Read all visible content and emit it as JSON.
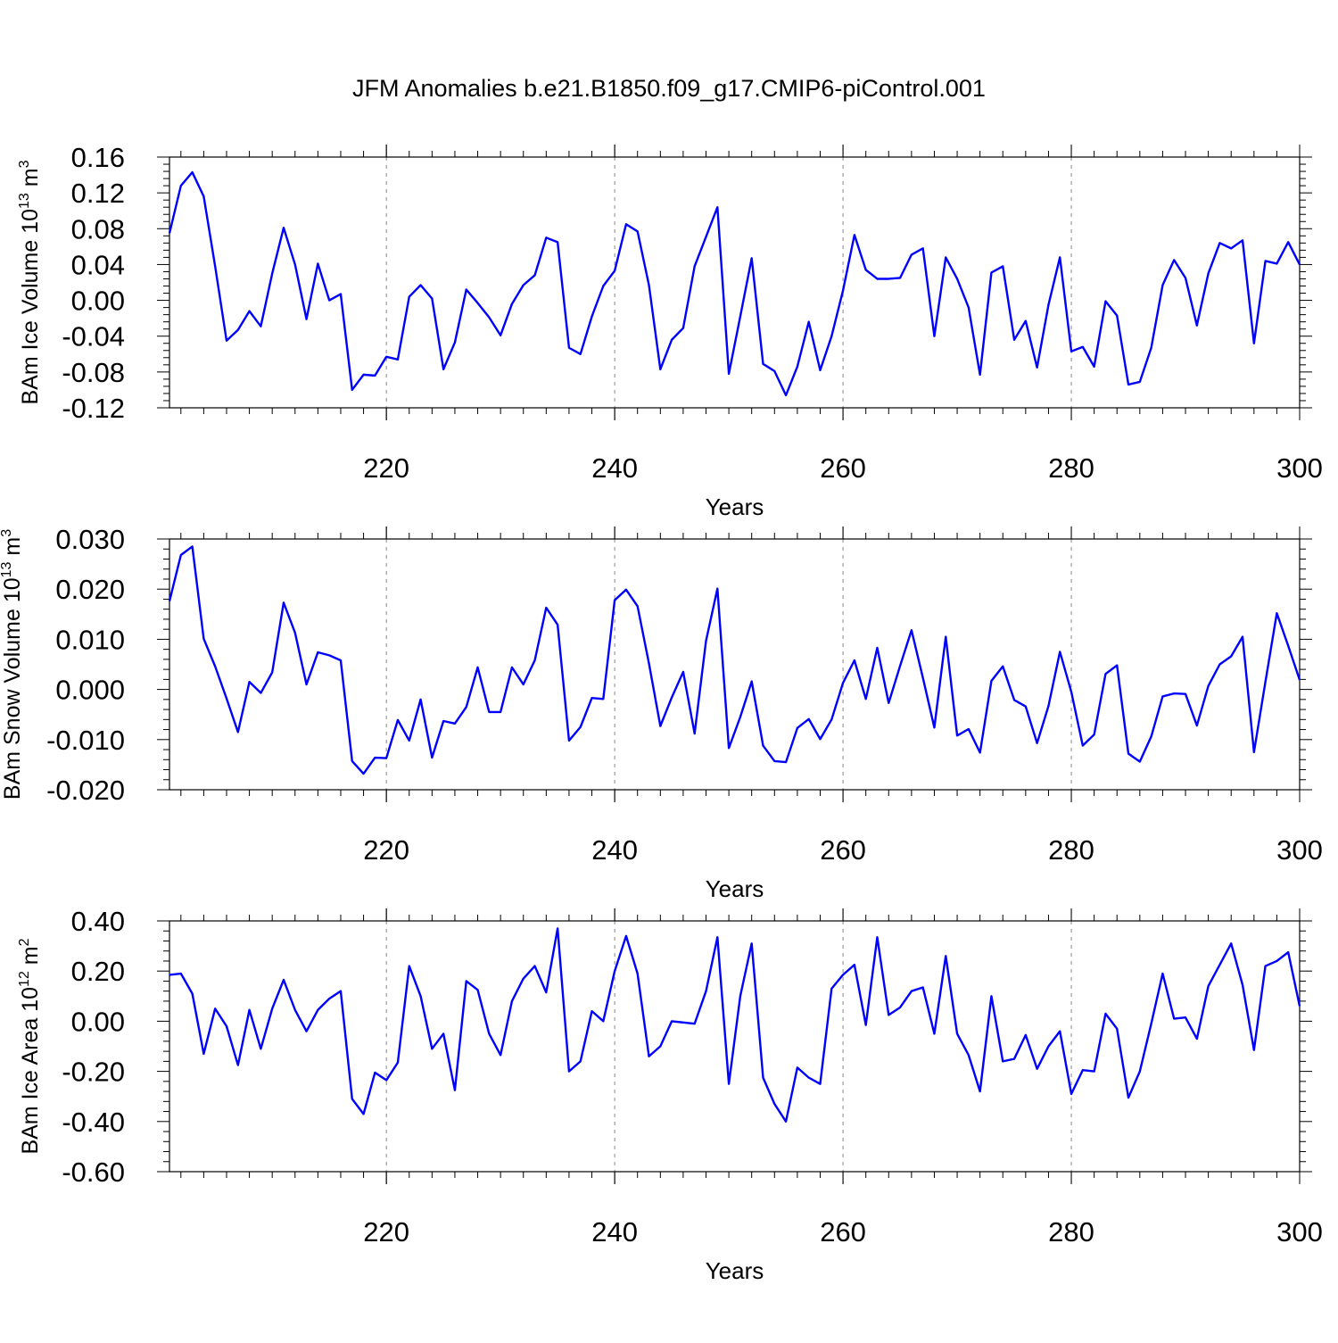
{
  "title": "JFM Anomalies b.e21.B1850.f09_g17.CMIP6-piControl.001",
  "colors": {
    "series": "#0000ff",
    "axis": "#000000",
    "grid": "#888888"
  },
  "chart_data": [
    {
      "type": "line",
      "title": "JFM Anomalies b.e21.B1850.f09_g17.CMIP6-piControl.001",
      "xlabel": "Years",
      "ylabel": "BAm Ice Volume 10",
      "ylabel_exp": "13",
      "ylabel_unit": "m",
      "ylabel_unit_exp": "3",
      "xlim": [
        201,
        300
      ],
      "ylim": [
        -0.12,
        0.16
      ],
      "yticks": [
        -0.12,
        -0.08,
        -0.04,
        0.0,
        0.04,
        0.08,
        0.12,
        0.16
      ],
      "ytick_labels": [
        "-0.12",
        "-0.08",
        "-0.04",
        "0.00",
        "0.04",
        "0.08",
        "0.12",
        "0.16"
      ],
      "xticks": [
        220,
        240,
        260,
        280,
        300
      ],
      "xtick_labels": [
        "220",
        "240",
        "260",
        "280",
        "300"
      ],
      "grid": "dashed vertical at major x ticks",
      "x_start": 201,
      "series": [
        {
          "name": "BAm Ice Volume",
          "values": [
            0.075,
            0.128,
            0.143,
            0.116,
            0.038,
            -0.045,
            -0.033,
            -0.012,
            -0.029,
            0.03,
            0.081,
            0.04,
            -0.021,
            0.041,
            0.0,
            0.007,
            -0.1,
            -0.083,
            -0.084,
            -0.063,
            -0.066,
            0.004,
            0.017,
            0.002,
            -0.077,
            -0.047,
            0.012,
            -0.003,
            -0.019,
            -0.039,
            -0.004,
            0.017,
            0.028,
            0.07,
            0.065,
            -0.053,
            -0.06,
            -0.018,
            0.016,
            0.033,
            0.085,
            0.077,
            0.017,
            -0.077,
            -0.044,
            -0.031,
            0.038,
            0.071,
            0.104,
            -0.082,
            -0.018,
            0.047,
            -0.071,
            -0.079,
            -0.106,
            -0.074,
            -0.024,
            -0.078,
            -0.04,
            0.011,
            0.073,
            0.034,
            0.024,
            0.024,
            0.025,
            0.051,
            0.058,
            -0.04,
            0.048,
            0.024,
            -0.008,
            -0.083,
            0.031,
            0.038,
            -0.044,
            -0.023,
            -0.075,
            -0.005,
            0.048,
            -0.057,
            -0.052,
            -0.074,
            -0.001,
            -0.017,
            -0.094,
            -0.091,
            -0.053,
            0.017,
            0.045,
            0.025,
            -0.028,
            0.03,
            0.064,
            0.058,
            0.067,
            -0.048,
            0.044,
            0.041,
            0.065,
            0.04
          ]
        }
      ]
    },
    {
      "type": "line",
      "xlabel": "Years",
      "ylabel": "BAm Snow Volume 10",
      "ylabel_exp": "13",
      "ylabel_unit": "m",
      "ylabel_unit_exp": "3",
      "xlim": [
        201,
        300
      ],
      "ylim": [
        -0.02,
        0.03
      ],
      "yticks": [
        -0.02,
        -0.01,
        0.0,
        0.01,
        0.02,
        0.03
      ],
      "ytick_labels": [
        "-0.020",
        "-0.010",
        "0.000",
        "0.010",
        "0.020",
        "0.030"
      ],
      "xticks": [
        220,
        240,
        260,
        280,
        300
      ],
      "xtick_labels": [
        "220",
        "240",
        "260",
        "280",
        "300"
      ],
      "grid": "dashed vertical at major x ticks",
      "x_start": 201,
      "series": [
        {
          "name": "BAm Snow Volume",
          "values": [
            0.0176,
            0.0268,
            0.0285,
            0.0101,
            0.0046,
            -0.0018,
            -0.0085,
            0.0015,
            -0.0007,
            0.0034,
            0.0173,
            0.0113,
            0.001,
            0.0074,
            0.0068,
            0.0058,
            -0.0143,
            -0.0168,
            -0.0136,
            -0.0137,
            -0.0061,
            -0.0102,
            -0.002,
            -0.0136,
            -0.0063,
            -0.0068,
            -0.0035,
            0.0044,
            -0.0045,
            -0.0045,
            0.0044,
            0.001,
            0.0058,
            0.0163,
            0.0129,
            -0.0102,
            -0.0075,
            -0.0017,
            -0.0019,
            0.0178,
            0.0199,
            0.0166,
            0.0052,
            -0.0073,
            -0.0016,
            0.0035,
            -0.0088,
            0.0097,
            0.0201,
            -0.0117,
            -0.0055,
            0.0016,
            -0.0112,
            -0.0143,
            -0.0145,
            -0.0077,
            -0.0059,
            -0.0099,
            -0.006,
            0.0013,
            0.0058,
            -0.0019,
            0.0083,
            -0.0027,
            0.0047,
            0.0118,
            0.0023,
            -0.0076,
            0.0105,
            -0.0092,
            -0.0079,
            -0.0126,
            0.0017,
            0.0046,
            -0.0021,
            -0.0034,
            -0.0107,
            -0.0033,
            0.0075,
            -0.0005,
            -0.0112,
            -0.009,
            0.0031,
            0.0048,
            -0.0128,
            -0.0144,
            -0.0094,
            -0.0014,
            -0.0008,
            -0.0009,
            -0.0072,
            0.0007,
            0.005,
            0.0066,
            0.0105,
            -0.0125,
            0.0015,
            0.0152,
            0.0087,
            0.0019
          ]
        }
      ]
    },
    {
      "type": "line",
      "xlabel": "Years",
      "ylabel": "BAm Ice Area 10",
      "ylabel_exp": "12",
      "ylabel_unit": "m",
      "ylabel_unit_exp": "2",
      "xlim": [
        201,
        300
      ],
      "ylim": [
        -0.6,
        0.4
      ],
      "yticks": [
        -0.6,
        -0.4,
        -0.2,
        0.0,
        0.2,
        0.4
      ],
      "ytick_labels": [
        "-0.60",
        "-0.40",
        "-0.20",
        "0.00",
        "0.20",
        "0.40"
      ],
      "xticks": [
        220,
        240,
        260,
        280,
        300
      ],
      "xtick_labels": [
        "220",
        "240",
        "260",
        "280",
        "300"
      ],
      "grid": "dashed vertical at major x ticks",
      "x_start": 201,
      "series": [
        {
          "name": "BAm Ice Area",
          "values": [
            0.185,
            0.19,
            0.11,
            -0.13,
            0.05,
            -0.02,
            -0.175,
            0.045,
            -0.11,
            0.05,
            0.165,
            0.045,
            -0.04,
            0.045,
            0.09,
            0.12,
            -0.31,
            -0.37,
            -0.205,
            -0.235,
            -0.165,
            0.22,
            0.1,
            -0.11,
            -0.05,
            -0.275,
            0.16,
            0.125,
            -0.05,
            -0.135,
            0.08,
            0.17,
            0.22,
            0.115,
            0.37,
            -0.2,
            -0.16,
            0.04,
            0.0,
            0.2,
            0.34,
            0.19,
            -0.14,
            -0.1,
            0.0,
            -0.005,
            -0.01,
            0.12,
            0.335,
            -0.25,
            0.1,
            0.31,
            -0.225,
            -0.33,
            -0.4,
            -0.185,
            -0.225,
            -0.25,
            0.13,
            0.185,
            0.225,
            -0.015,
            0.335,
            0.025,
            0.055,
            0.12,
            0.135,
            -0.05,
            0.26,
            -0.05,
            -0.135,
            -0.28,
            0.1,
            -0.16,
            -0.15,
            -0.055,
            -0.19,
            -0.1,
            -0.04,
            -0.29,
            -0.195,
            -0.2,
            0.03,
            -0.03,
            -0.305,
            -0.2,
            -0.01,
            0.19,
            0.01,
            0.015,
            -0.07,
            0.14,
            0.225,
            0.31,
            0.145,
            -0.115,
            0.22,
            0.24,
            0.275,
            0.06
          ]
        }
      ]
    }
  ]
}
